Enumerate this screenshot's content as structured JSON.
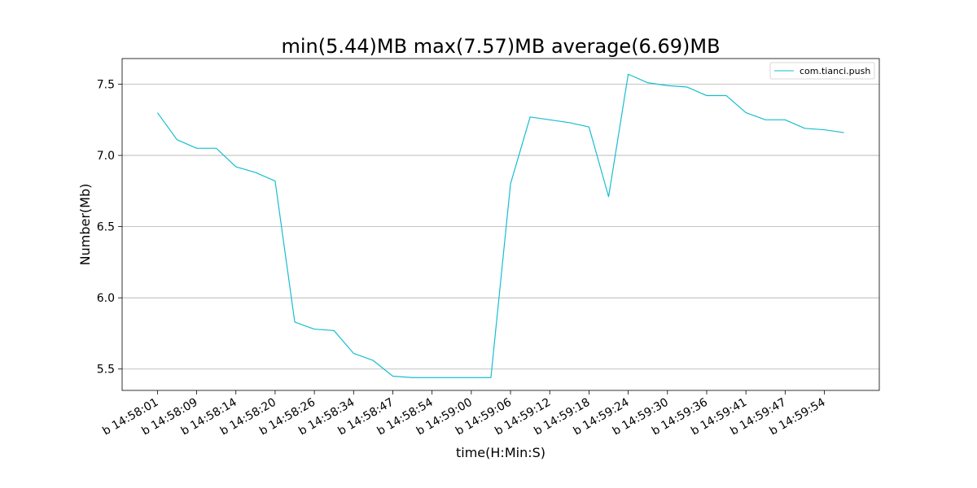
{
  "chart_data": {
    "type": "line",
    "title": "min(5.44)MB max(7.57)MB average(6.69)MB",
    "xlabel": "time(H:Min:S)",
    "ylabel": "Number(Mb)",
    "ylim": [
      5.35,
      7.68
    ],
    "yticks": [
      5.5,
      6.0,
      6.5,
      7.0,
      7.5
    ],
    "ytick_labels": [
      "5.5",
      "6.0",
      "6.5",
      "7.0",
      "7.5"
    ],
    "xticks": [
      0,
      2,
      4,
      6,
      8,
      10,
      12,
      14,
      16,
      18,
      20,
      22,
      24,
      26,
      28,
      30,
      32,
      34
    ],
    "xtick_labels": [
      "b 14:58:01",
      "b 14:58:09",
      "b 14:58:14",
      "b 14:58:20",
      "b 14:58:26",
      "b 14:58:34",
      "b 14:58:47",
      "b 14:58:54",
      "b 14:59:00",
      "b 14:59:06",
      "b 14:59:12",
      "b 14:59:18",
      "b 14:59:24",
      "b 14:59:30",
      "b 14:59:36",
      "b 14:59:41",
      "b 14:59:47",
      "b 14:59:54"
    ],
    "xlim": [
      -1.8,
      36.8
    ],
    "grid": "y",
    "legend_position": "top-right",
    "series": [
      {
        "name": "com.tianci.push",
        "color": "#17becf",
        "x": [
          0,
          1,
          2,
          3,
          4,
          5,
          6,
          7,
          8,
          9,
          10,
          11,
          12,
          13,
          14,
          15,
          16,
          17,
          18,
          19,
          20,
          21,
          22,
          23,
          24,
          25,
          26,
          27,
          28,
          29,
          30,
          31,
          32,
          33,
          34,
          35
        ],
        "y": [
          7.3,
          7.11,
          7.05,
          7.05,
          6.92,
          6.88,
          6.82,
          5.83,
          5.78,
          5.77,
          5.61,
          5.56,
          5.45,
          5.44,
          5.44,
          5.44,
          5.44,
          5.44,
          6.8,
          7.27,
          7.25,
          7.23,
          7.2,
          6.71,
          7.57,
          7.51,
          7.49,
          7.48,
          7.42,
          7.42,
          7.3,
          7.25,
          7.25,
          7.19,
          7.18,
          7.16
        ]
      }
    ]
  }
}
